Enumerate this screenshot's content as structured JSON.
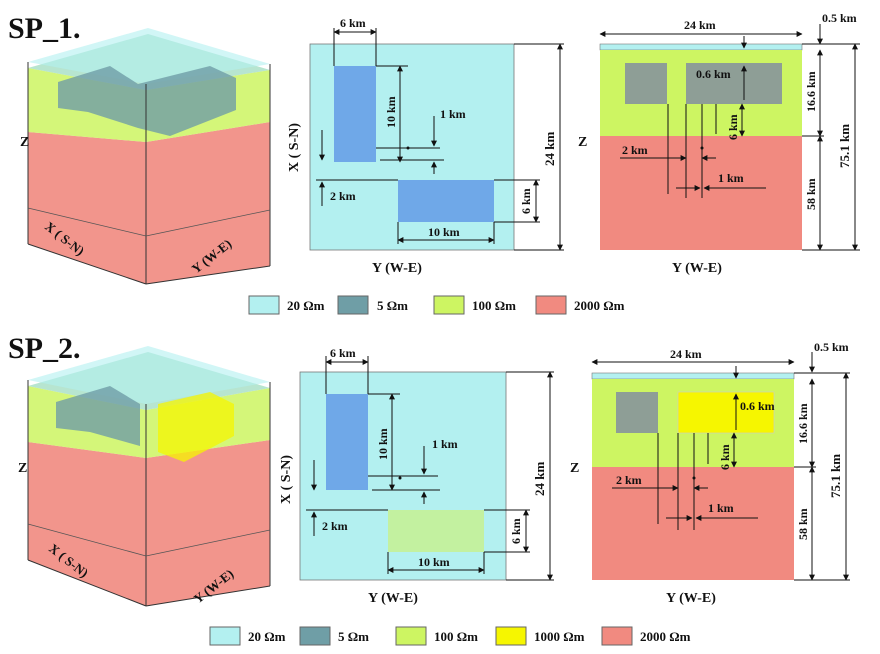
{
  "colors": {
    "r20": "#b3f0f0",
    "r5": "#6f9ea6",
    "r100": "#cdf562",
    "r1000": "#f6f600",
    "r2000": "#f18a80",
    "block_blue": "#6fa8e8",
    "block_green": "#c3f1a0",
    "block_dark": "#8e9e96",
    "block_yellow_plan": "#ffff60",
    "lines": "#111111"
  },
  "legend_sp1": [
    {
      "label": "20 Ωm",
      "color_key": "r20"
    },
    {
      "label": "5 Ωm",
      "color_key": "r5"
    },
    {
      "label": "100 Ωm",
      "color_key": "r100"
    },
    {
      "label": "2000 Ωm",
      "color_key": "r2000"
    }
  ],
  "legend_sp2": [
    {
      "label": "20 Ωm",
      "color_key": "r20"
    },
    {
      "label": "5 Ωm",
      "color_key": "r5"
    },
    {
      "label": "100 Ωm",
      "color_key": "r100"
    },
    {
      "label": "1000 Ωm",
      "color_key": "r1000"
    },
    {
      "label": "2000 Ωm",
      "color_key": "r2000"
    }
  ],
  "sp1": {
    "title": "SP_1.",
    "cube": {
      "z_label": "Z",
      "x_label": "X ( S-N)",
      "y_label": "Y (W-E)"
    },
    "plan": {
      "ylabel": "X ( S-N)",
      "xlabel": "Y (W-E)",
      "dim_6km_top": "6 km",
      "dim_10km_vert": "10 km",
      "dim_1km": "1 km",
      "dim_24km": "24 km",
      "dim_2km": "2 km",
      "dim_6km_right": "6 km",
      "dim_10km_bottom": "10 km"
    },
    "section": {
      "xlabel": "Y (W-E)",
      "zlabel": "Z",
      "dim_24km": "24 km",
      "dim_05km": "0.5 km",
      "dim_06km": "0.6 km",
      "dim_166km": "16.6 km",
      "dim_751km": "75.1 km",
      "dim_6km": "6 km",
      "dim_2km": "2 km",
      "dim_1km": "1 km",
      "dim_58km": "58 km"
    }
  },
  "sp2": {
    "title": "SP_2.",
    "cube": {
      "z_label": "Z",
      "x_label": "X ( S-N)",
      "y_label": "Y (W-E)"
    },
    "plan": {
      "ylabel": "X ( S-N)",
      "xlabel": "Y (W-E)",
      "dim_6km_top": "6 km",
      "dim_10km_vert": "10 km",
      "dim_1km": "1 km",
      "dim_24km": "24 km",
      "dim_2km": "2 km",
      "dim_6km_right": "6 km",
      "dim_10km_bottom": "10 km"
    },
    "section": {
      "xlabel": "Y (W-E)",
      "zlabel": "Z",
      "dim_24km": "24 km",
      "dim_05km": "0.5 km",
      "dim_06km": "0.6 km",
      "dim_166km": "16.6 km",
      "dim_751km": "75.1 km",
      "dim_6km": "6 km",
      "dim_2km": "2 km",
      "dim_1km": "1 km",
      "dim_58km": "58 km"
    }
  }
}
